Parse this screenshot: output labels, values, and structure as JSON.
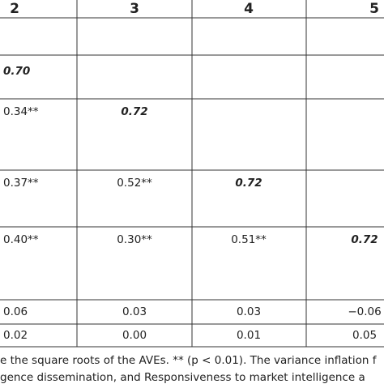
{
  "table": {
    "header": [
      "2",
      "3",
      "4",
      "5"
    ],
    "rows": [
      [
        null,
        null,
        null,
        null
      ],
      [
        "0.70",
        null,
        null,
        null
      ],
      [
        "0.34**",
        "0.72",
        null,
        null
      ],
      [
        "0.37**",
        "0.52**",
        "0.72",
        null
      ],
      [
        "0.40**",
        "0.30**",
        "0.51**",
        "0.72"
      ],
      [
        "0.06",
        "0.03",
        "0.03",
        "−0.06"
      ],
      [
        "0.02",
        "0.00",
        "0.01",
        "0.05"
      ]
    ]
  },
  "footnote": [
    "e the square roots of the AVEs. ** (p < 0.01). The variance inflation f",
    "gence dissemination, and Responsiveness to market intelligence a"
  ]
}
